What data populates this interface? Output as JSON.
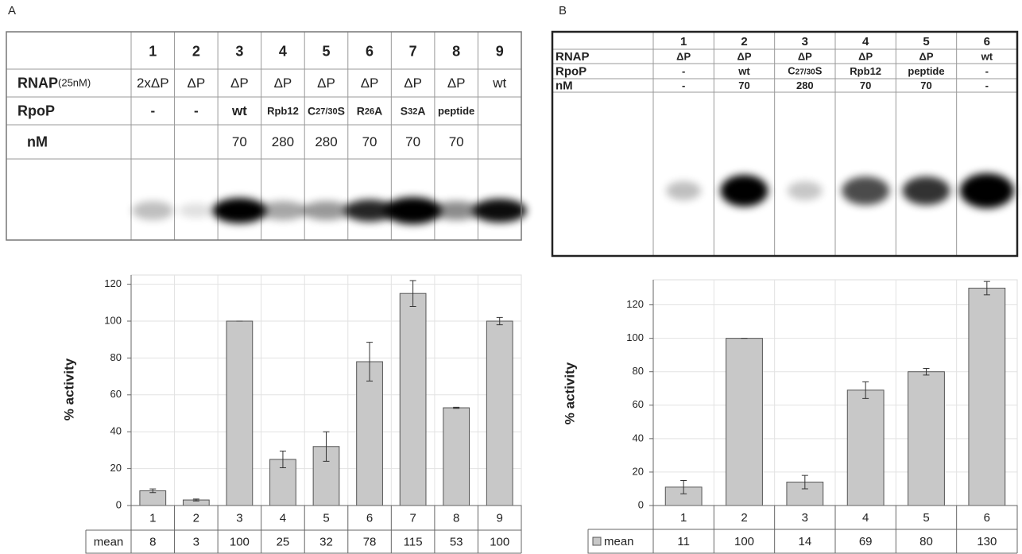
{
  "panel_labels": [
    "A",
    "B"
  ],
  "gels": [
    {
      "columns": [
        "1",
        "2",
        "3",
        "4",
        "5",
        "6",
        "7",
        "8",
        "9"
      ],
      "rows": [
        {
          "label": "RNAP",
          "note": "(25nM)",
          "cells": [
            "2xΔP",
            "ΔP",
            "ΔP",
            "ΔP",
            "ΔP",
            "ΔP",
            "ΔP",
            "ΔP",
            "wt"
          ]
        },
        {
          "label": "RpoP",
          "cells": [
            "-",
            "-",
            "wt",
            "Rpb12",
            [
              "C",
              "27/30",
              "S"
            ],
            [
              "R",
              "26",
              "A"
            ],
            [
              "S",
              "32",
              "A"
            ],
            "peptide",
            null
          ]
        },
        {
          "label": "nM",
          "cells": [
            null,
            null,
            "70",
            "280",
            "280",
            "70",
            "70",
            "70",
            null
          ]
        }
      ]
    },
    {
      "columns": [
        "1",
        "2",
        "3",
        "4",
        "5",
        "6"
      ],
      "rows": [
        {
          "label": "RNAP",
          "cells": [
            "ΔP",
            "ΔP",
            "ΔP",
            "ΔP",
            "ΔP",
            "wt"
          ]
        },
        {
          "label": "RpoP",
          "cells": [
            "-",
            "wt",
            [
              "C",
              "27/30",
              "S"
            ],
            "Rpb12",
            "peptide",
            "-"
          ]
        },
        {
          "label": "nM",
          "cells": [
            "-",
            "70",
            "280",
            "70",
            "70",
            "-"
          ]
        }
      ]
    }
  ],
  "chart_data": [
    {
      "type": "bar",
      "ylabel": "% activity",
      "categories": [
        "1",
        "2",
        "3",
        "4",
        "5",
        "6",
        "7",
        "8",
        "9"
      ],
      "values": [
        8,
        3,
        100,
        25,
        32,
        78,
        115,
        53,
        100
      ],
      "errors": [
        1,
        0.5,
        0,
        4.5,
        8,
        10.5,
        7,
        0.3,
        2
      ],
      "color": "#c8c8c8",
      "ylim": [
        0,
        125
      ],
      "yticks": [
        0,
        20,
        40,
        60,
        80,
        100,
        120
      ],
      "grid": true,
      "table_label": "mean",
      "legend": false
    },
    {
      "type": "bar",
      "ylabel": "% activity",
      "categories": [
        "1",
        "2",
        "3",
        "4",
        "5",
        "6"
      ],
      "values": [
        11,
        100,
        14,
        69,
        80,
        130
      ],
      "errors": [
        4,
        0,
        4,
        5,
        2,
        4
      ],
      "color": "#c8c8c8",
      "ylim": [
        0,
        135
      ],
      "yticks": [
        0,
        20,
        40,
        60,
        80,
        100,
        120
      ],
      "grid": true,
      "table_label": "mean",
      "legend": true
    }
  ]
}
